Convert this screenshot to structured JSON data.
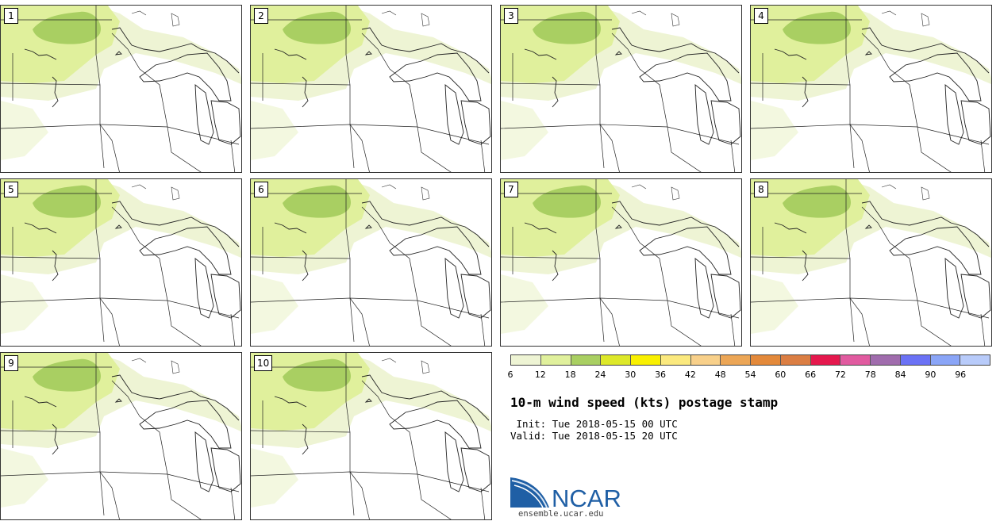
{
  "members": [
    {
      "label": "1"
    },
    {
      "label": "2"
    },
    {
      "label": "3"
    },
    {
      "label": "4"
    },
    {
      "label": "5"
    },
    {
      "label": "6"
    },
    {
      "label": "7"
    },
    {
      "label": "8"
    },
    {
      "label": "9"
    },
    {
      "label": "10"
    }
  ],
  "colorbar": {
    "ticks": [
      "6",
      "12",
      "18",
      "24",
      "30",
      "36",
      "42",
      "48",
      "54",
      "60",
      "66",
      "72",
      "78",
      "84",
      "90",
      "96"
    ],
    "colors": [
      "#eef4d4",
      "#e0f09c",
      "#a9cf62",
      "#dde829",
      "#f9f000",
      "#fbe97e",
      "#f8d08a",
      "#eca656",
      "#e3893a",
      "#db7e43",
      "#e5184d",
      "#e15ba0",
      "#a06cad",
      "#6b72f5",
      "#8aa5f7",
      "#b8cbfa"
    ]
  },
  "title": "10-m wind speed (kts) postage stamp",
  "init": " Init: Tue 2018-05-15 00 UTC",
  "valid": "Valid: Tue 2018-05-15 20 UTC",
  "logo": {
    "text": "NCAR",
    "url": "ensemble.ucar.edu",
    "brand_color": "#1f5fa5"
  }
}
